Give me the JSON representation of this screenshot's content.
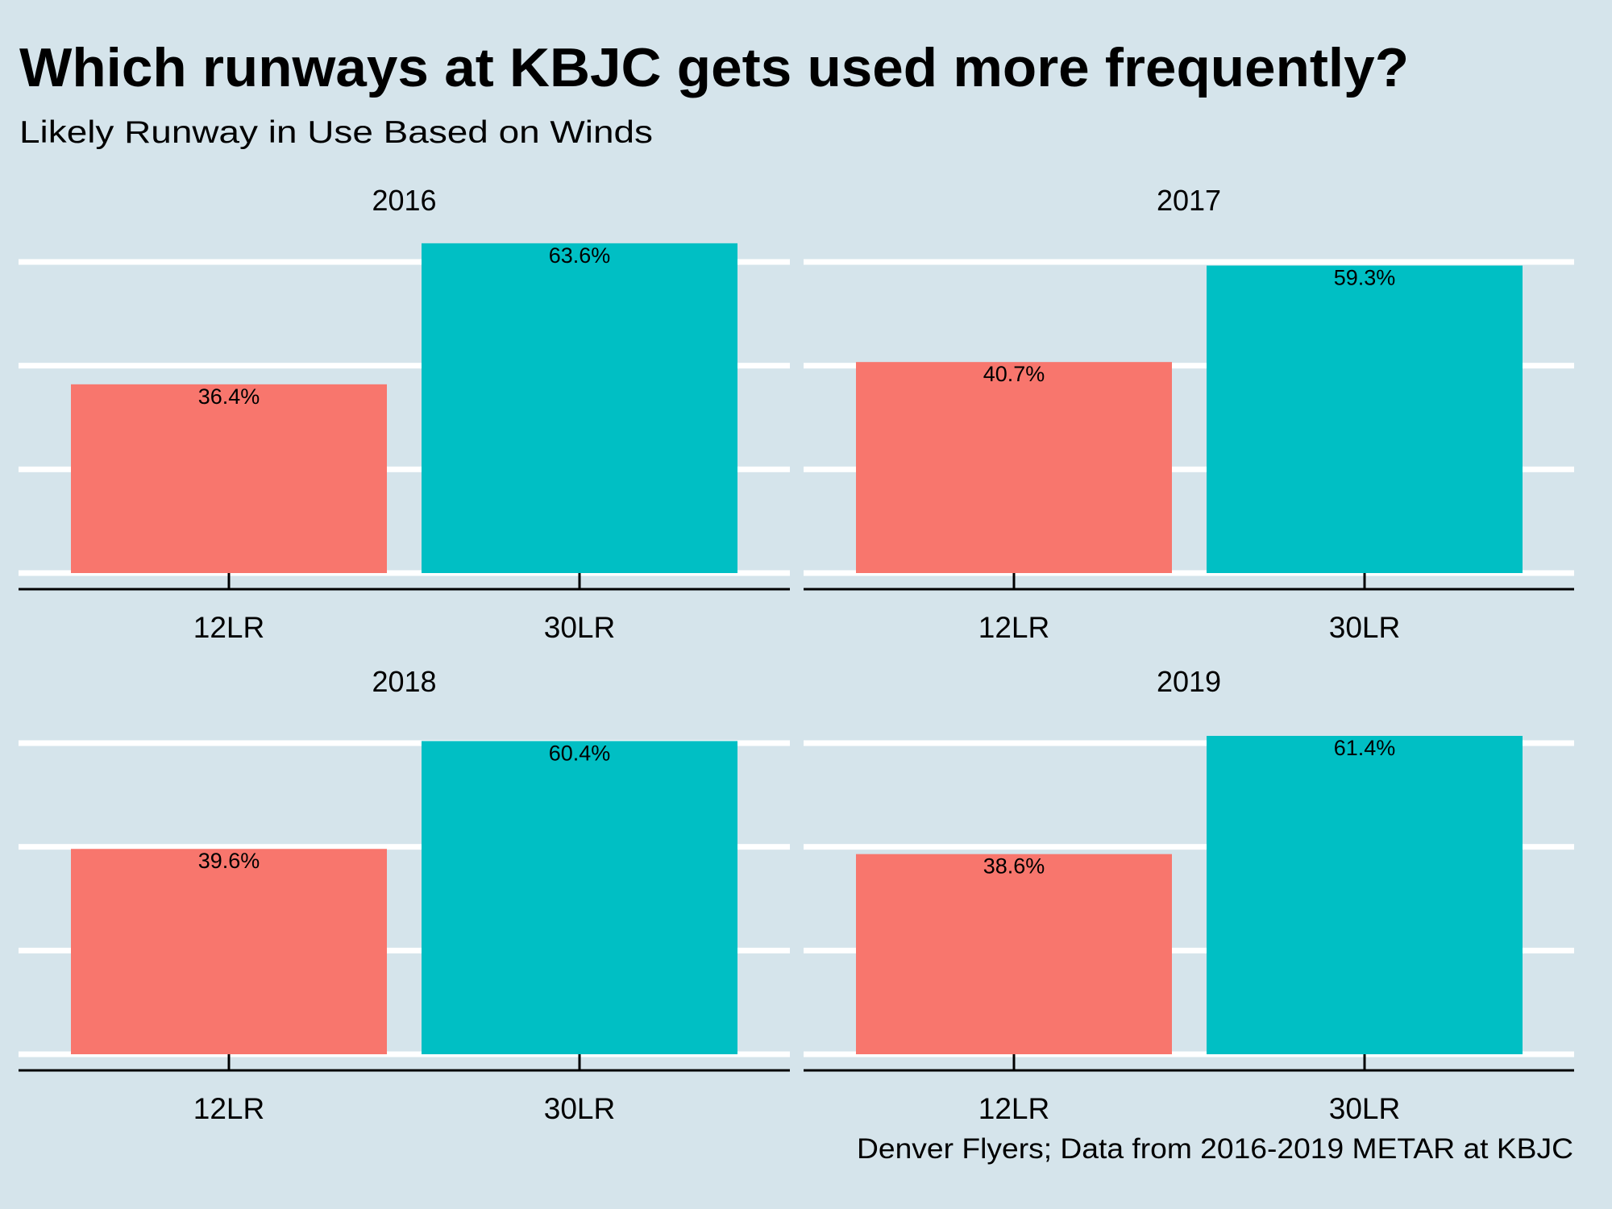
{
  "colors": {
    "background": "#d5e4eb",
    "gridline": "#ffffff",
    "axis": "#000000",
    "series": {
      "12LR": "#f8766d",
      "30LR": "#00bfc4"
    }
  },
  "chart_data": {
    "type": "bar",
    "title": "Which runways at KBJC gets used more frequently?",
    "subtitle": "Likely Runway in Use Based on Winds",
    "caption": "Denver Flyers; Data from 2016-2019 METAR at KBJC",
    "xlabel": "",
    "ylabel": "",
    "ylim": [
      0,
      65
    ],
    "y_gridlines": [
      0,
      20,
      40,
      60
    ],
    "grid": true,
    "legend": "none",
    "facet_by": "year",
    "categories": [
      "12LR",
      "30LR"
    ],
    "facets": [
      {
        "title": "2016",
        "values": [
          36.4,
          63.6
        ],
        "labels": [
          "36.4%",
          "63.6%"
        ]
      },
      {
        "title": "2017",
        "values": [
          40.7,
          59.3
        ],
        "labels": [
          "40.7%",
          "59.3%"
        ]
      },
      {
        "title": "2018",
        "values": [
          39.6,
          60.4
        ],
        "labels": [
          "39.6%",
          "60.4%"
        ]
      },
      {
        "title": "2019",
        "values": [
          38.6,
          61.4
        ],
        "labels": [
          "38.6%",
          "61.4%"
        ]
      }
    ]
  }
}
